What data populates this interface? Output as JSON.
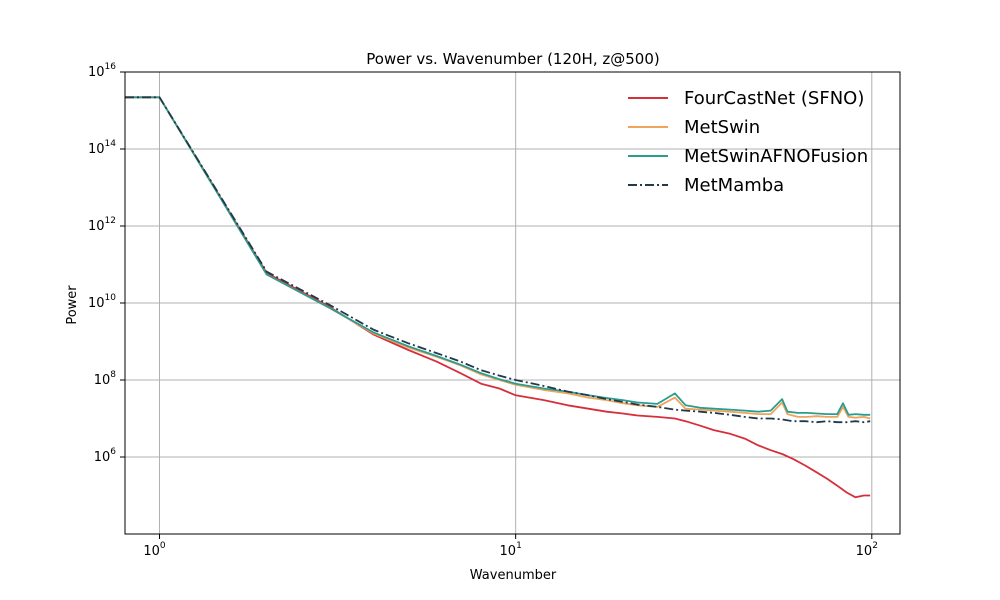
{
  "chart_data": {
    "type": "line",
    "title": "Power vs. Wavenumber (120H, z@500)",
    "xlabel": "Wavenumber",
    "ylabel": "Power",
    "xscale": "log",
    "yscale": "log",
    "xlim": [
      0.8,
      120
    ],
    "ylim": [
      10000.0,
      1e+16
    ],
    "grid": true,
    "legend_position": "top-right",
    "x_ticks": [
      {
        "value": 1,
        "base": "10",
        "exp": "0"
      },
      {
        "value": 10,
        "base": "10",
        "exp": "1"
      },
      {
        "value": 100,
        "base": "10",
        "exp": "2"
      }
    ],
    "y_ticks": [
      {
        "value": 1000000.0,
        "base": "10",
        "exp": "6"
      },
      {
        "value": 100000000.0,
        "base": "10",
        "exp": "8"
      },
      {
        "value": 10000000000.0,
        "base": "10",
        "exp": "10"
      },
      {
        "value": 1000000000000.0,
        "base": "10",
        "exp": "12"
      },
      {
        "value": 100000000000000.0,
        "base": "10",
        "exp": "14"
      },
      {
        "value": 1e+16,
        "base": "10",
        "exp": "16"
      }
    ],
    "series": [
      {
        "name": "FourCastNet (SFNO)",
        "color": "#d62f3b",
        "dash": "solid",
        "points": [
          [
            0.8,
            2200000000000000.0
          ],
          [
            1,
            2200000000000000.0
          ],
          [
            2,
            60000000000.0
          ],
          [
            3,
            8000000000.0
          ],
          [
            4,
            1500000000.0
          ],
          [
            5,
            600000000.0
          ],
          [
            6,
            300000000.0
          ],
          [
            7,
            150000000.0
          ],
          [
            8,
            80000000.0
          ],
          [
            9,
            60000000.0
          ],
          [
            10,
            40000000.0
          ],
          [
            12,
            30000000.0
          ],
          [
            14,
            22000000.0
          ],
          [
            16,
            18000000.0
          ],
          [
            18,
            15000000.0
          ],
          [
            20,
            13500000.0
          ],
          [
            22,
            12000000.0
          ],
          [
            25,
            11000000.0
          ],
          [
            28,
            10000000.0
          ],
          [
            30,
            8500000.0
          ],
          [
            33,
            6500000.0
          ],
          [
            36,
            5000000.0
          ],
          [
            40,
            4000000.0
          ],
          [
            44,
            3000000.0
          ],
          [
            48,
            2000000.0
          ],
          [
            52,
            1500000.0
          ],
          [
            56,
            1200000.0
          ],
          [
            60,
            900000.0
          ],
          [
            65,
            600000.0
          ],
          [
            70,
            400000.0
          ],
          [
            75,
            270000.0
          ],
          [
            80,
            180000.0
          ],
          [
            85,
            120000.0
          ],
          [
            90,
            90000.0
          ],
          [
            95,
            100000.0
          ],
          [
            99,
            100000.0
          ]
        ]
      },
      {
        "name": "MetSwin",
        "color": "#f0a35a",
        "dash": "solid",
        "points": [
          [
            0.8,
            2200000000000000.0
          ],
          [
            1,
            2200000000000000.0
          ],
          [
            2,
            55000000000.0
          ],
          [
            3,
            7500000000.0
          ],
          [
            4,
            1600000000.0
          ],
          [
            5,
            700000000.0
          ],
          [
            6,
            400000000.0
          ],
          [
            7,
            240000000.0
          ],
          [
            8,
            140000000.0
          ],
          [
            9,
            100000000.0
          ],
          [
            10,
            75000000.0
          ],
          [
            12,
            55000000.0
          ],
          [
            14,
            45000000.0
          ],
          [
            16,
            35000000.0
          ],
          [
            18,
            30000000.0
          ],
          [
            20,
            25000000.0
          ],
          [
            22,
            22000000.0
          ],
          [
            25,
            20000000.0
          ],
          [
            28,
            35000000.0
          ],
          [
            30,
            18000000.0
          ],
          [
            33,
            17000000.0
          ],
          [
            36,
            16000000.0
          ],
          [
            40,
            15000000.0
          ],
          [
            44,
            14000000.0
          ],
          [
            48,
            13000000.0
          ],
          [
            52,
            13000000.0
          ],
          [
            56,
            26000000.0
          ],
          [
            58,
            13000000.0
          ],
          [
            62,
            11000000.0
          ],
          [
            66,
            11000000.0
          ],
          [
            70,
            11500000.0
          ],
          [
            75,
            11000000.0
          ],
          [
            80,
            11000000.0
          ],
          [
            83,
            20000000.0
          ],
          [
            86,
            11000000.0
          ],
          [
            90,
            10500000.0
          ],
          [
            95,
            11000000.0
          ],
          [
            99,
            10000000.0
          ]
        ]
      },
      {
        "name": "MetSwinAFNOFusion",
        "color": "#2a9d8f",
        "dash": "solid",
        "points": [
          [
            0.8,
            2200000000000000.0
          ],
          [
            1,
            2200000000000000.0
          ],
          [
            2,
            55000000000.0
          ],
          [
            3,
            7500000000.0
          ],
          [
            4,
            1700000000.0
          ],
          [
            5,
            750000000.0
          ],
          [
            6,
            420000000.0
          ],
          [
            7,
            250000000.0
          ],
          [
            8,
            150000000.0
          ],
          [
            9,
            105000000.0
          ],
          [
            10,
            80000000.0
          ],
          [
            12,
            60000000.0
          ],
          [
            14,
            50000000.0
          ],
          [
            16,
            40000000.0
          ],
          [
            18,
            34000000.0
          ],
          [
            20,
            30000000.0
          ],
          [
            22,
            26000000.0
          ],
          [
            25,
            24000000.0
          ],
          [
            28,
            45000000.0
          ],
          [
            30,
            22000000.0
          ],
          [
            33,
            19000000.0
          ],
          [
            36,
            18000000.0
          ],
          [
            40,
            17000000.0
          ],
          [
            44,
            16000000.0
          ],
          [
            48,
            15000000.0
          ],
          [
            52,
            16000000.0
          ],
          [
            56,
            32000000.0
          ],
          [
            58,
            15000000.0
          ],
          [
            62,
            14000000.0
          ],
          [
            66,
            14000000.0
          ],
          [
            70,
            13500000.0
          ],
          [
            75,
            13000000.0
          ],
          [
            80,
            13000000.0
          ],
          [
            83,
            25000000.0
          ],
          [
            86,
            12500000.0
          ],
          [
            90,
            13000000.0
          ],
          [
            95,
            12500000.0
          ],
          [
            99,
            12500000.0
          ]
        ]
      },
      {
        "name": "MetMamba",
        "color": "#1f3a4d",
        "dash": "dashdot",
        "points": [
          [
            0.8,
            2200000000000000.0
          ],
          [
            1,
            2200000000000000.0
          ],
          [
            2,
            65000000000.0
          ],
          [
            3,
            9000000000.0
          ],
          [
            4,
            2000000000.0
          ],
          [
            5,
            900000000.0
          ],
          [
            6,
            500000000.0
          ],
          [
            7,
            300000000.0
          ],
          [
            8,
            180000000.0
          ],
          [
            9,
            130000000.0
          ],
          [
            10,
            100000000.0
          ],
          [
            12,
            70000000.0
          ],
          [
            14,
            50000000.0
          ],
          [
            16,
            40000000.0
          ],
          [
            18,
            32000000.0
          ],
          [
            20,
            27000000.0
          ],
          [
            22,
            23000000.0
          ],
          [
            25,
            20000000.0
          ],
          [
            28,
            17000000.0
          ],
          [
            30,
            16000000.0
          ],
          [
            33,
            15000000.0
          ],
          [
            36,
            14000000.0
          ],
          [
            40,
            12500000.0
          ],
          [
            44,
            11000000.0
          ],
          [
            48,
            10000000.0
          ],
          [
            52,
            10000000.0
          ],
          [
            56,
            9500000.0
          ],
          [
            60,
            8500000.0
          ],
          [
            65,
            8500000.0
          ],
          [
            70,
            8000000.0
          ],
          [
            75,
            8500000.0
          ],
          [
            80,
            8000000.0
          ],
          [
            85,
            8000000.0
          ],
          [
            90,
            8500000.0
          ],
          [
            95,
            8000000.0
          ],
          [
            99,
            8500000.0
          ]
        ]
      }
    ]
  }
}
